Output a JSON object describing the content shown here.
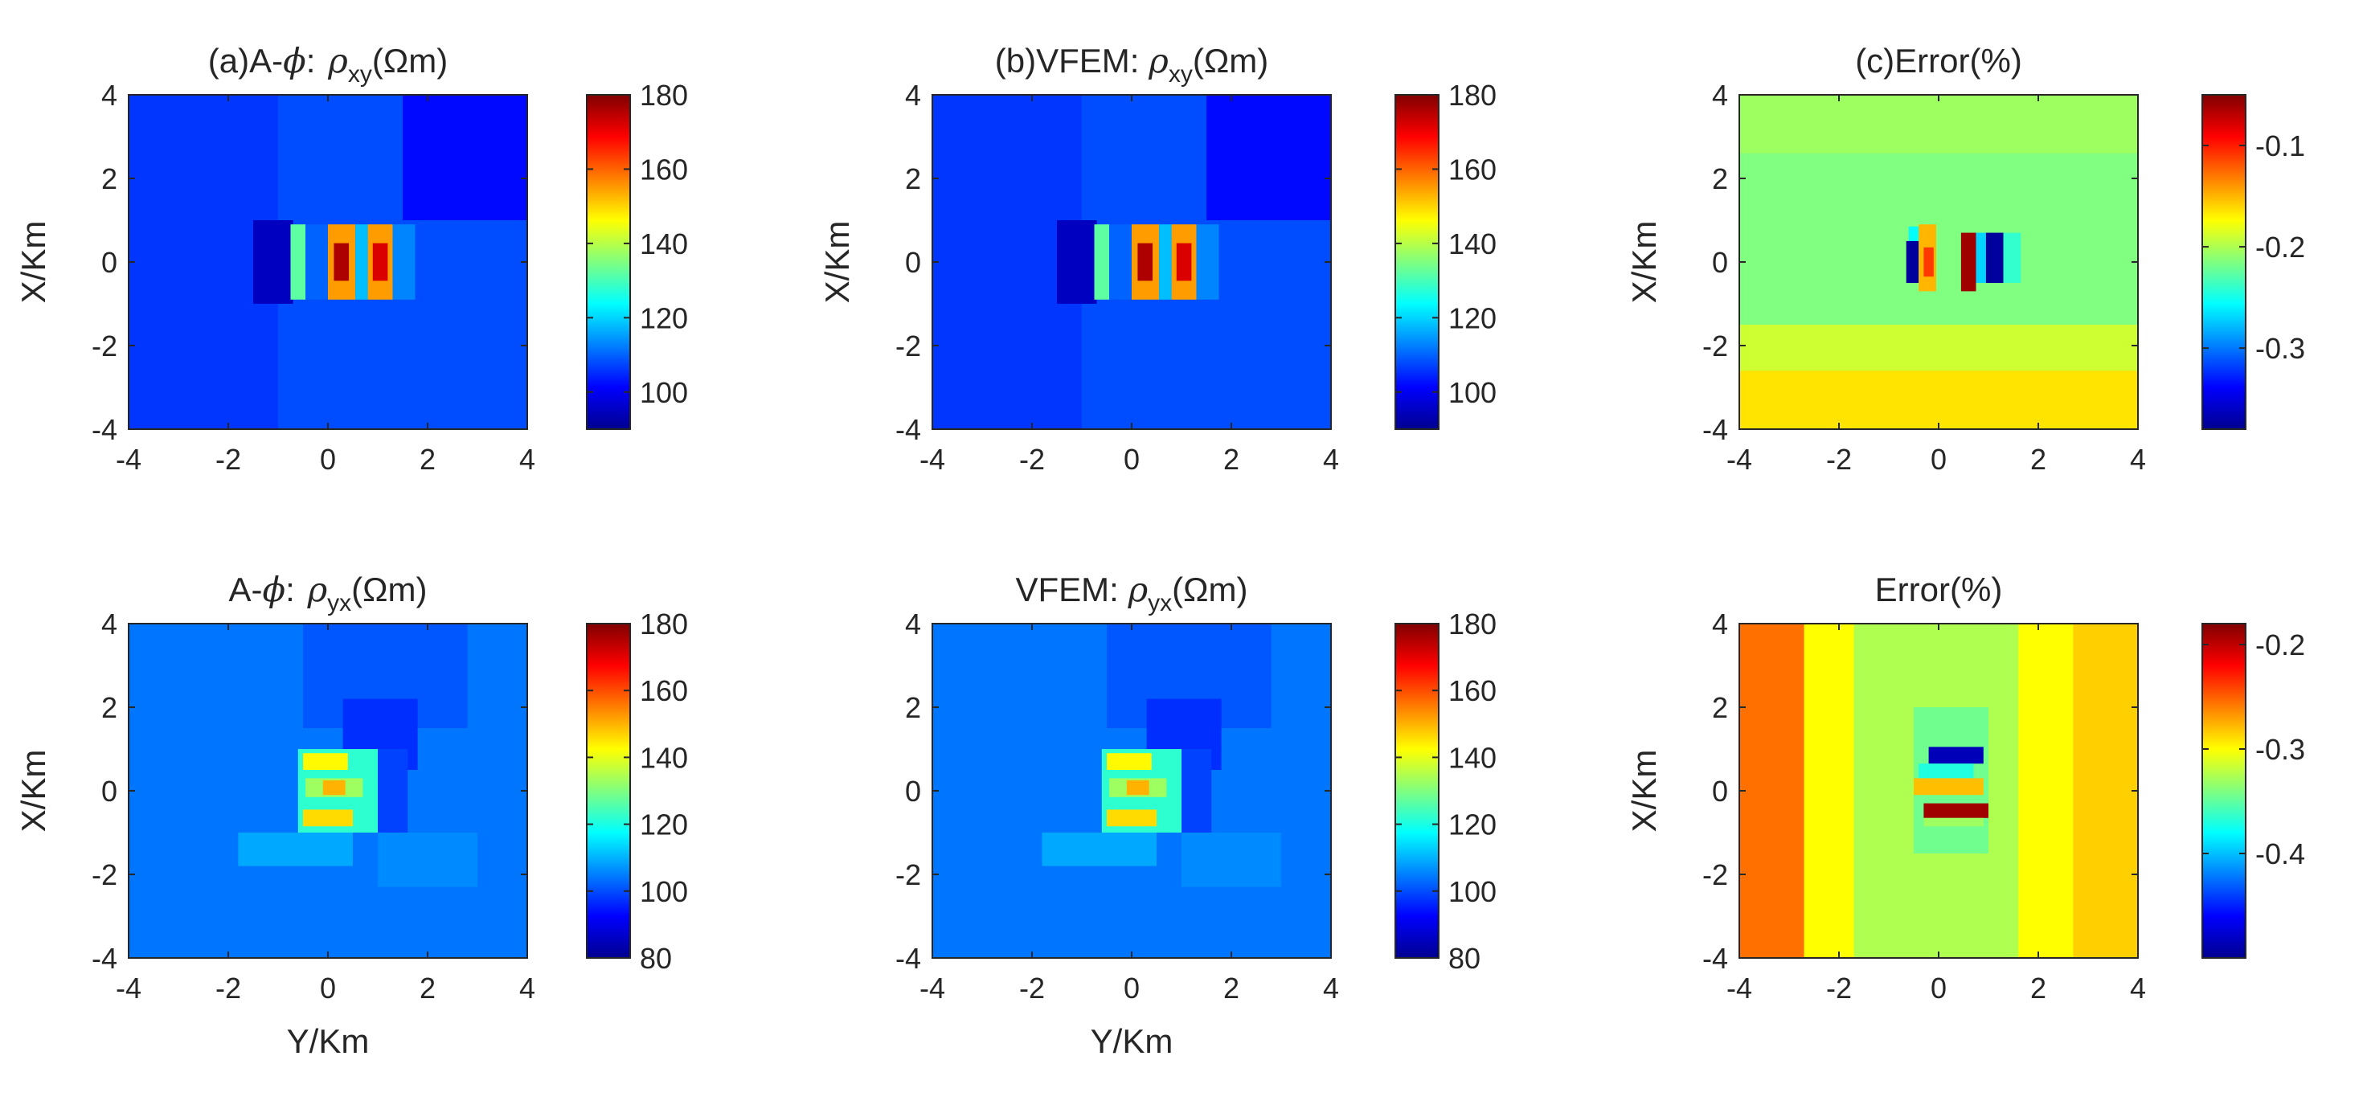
{
  "figure": {
    "colormap": "jet",
    "colormap_stops": [
      "#00008f",
      "#0000ff",
      "#00ffff",
      "#ffff00",
      "#ff0000",
      "#800000"
    ]
  },
  "chart_data": [
    {
      "type": "heatmap",
      "id": "a",
      "title": {
        "main": "(a)A-",
        "greek": "ϕ",
        "sep": ": ",
        "rho": "ρ",
        "sub": "xy",
        "unit": "(Ωm)"
      },
      "xlabel": "",
      "ylabel": "X/Km",
      "xlim": [
        -4,
        4
      ],
      "ylim": [
        -4,
        4
      ],
      "xticks": [
        "-4",
        "-2",
        "0",
        "2",
        "4"
      ],
      "yticks": [
        "4",
        "2",
        "0",
        "-2",
        "-4"
      ],
      "colorbar": {
        "min": 90,
        "max": 180,
        "ticks": [
          100,
          120,
          140,
          160,
          180
        ]
      },
      "background": 108,
      "features": [
        {
          "y": [
            -4.0,
            4.0
          ],
          "x": [
            -4.0,
            -1.0
          ],
          "value": 106
        },
        {
          "y": [
            1.0,
            4.0
          ],
          "x": [
            1.5,
            4.0
          ],
          "value": 102
        },
        {
          "y": [
            -1.0,
            1.0
          ],
          "x": [
            -1.5,
            -0.7
          ],
          "value": 95
        },
        {
          "y": [
            -0.9,
            0.9
          ],
          "x": [
            -0.75,
            -0.45
          ],
          "value": 132
        },
        {
          "y": [
            -0.9,
            0.9
          ],
          "x": [
            -0.45,
            0.0
          ],
          "value": 110
        },
        {
          "y": [
            -0.9,
            0.9
          ],
          "x": [
            0.0,
            0.55
          ],
          "value": 155
        },
        {
          "y": [
            -0.45,
            0.45
          ],
          "x": [
            0.12,
            0.42
          ],
          "value": 176
        },
        {
          "y": [
            -0.9,
            0.9
          ],
          "x": [
            0.55,
            0.8
          ],
          "value": 118
        },
        {
          "y": [
            -0.9,
            0.9
          ],
          "x": [
            0.8,
            1.3
          ],
          "value": 155
        },
        {
          "y": [
            -0.45,
            0.45
          ],
          "x": [
            0.9,
            1.2
          ],
          "value": 172
        },
        {
          "y": [
            -0.9,
            0.9
          ],
          "x": [
            1.3,
            1.75
          ],
          "value": 113
        }
      ]
    },
    {
      "type": "heatmap",
      "id": "b",
      "title": {
        "main": "(b)VFEM: ",
        "greek": "",
        "sep": "",
        "rho": "ρ",
        "sub": "xy",
        "unit": "(Ωm)"
      },
      "xlabel": "",
      "ylabel": "X/Km",
      "xlim": [
        -4,
        4
      ],
      "ylim": [
        -4,
        4
      ],
      "xticks": [
        "-4",
        "-2",
        "0",
        "2",
        "4"
      ],
      "yticks": [
        "4",
        "2",
        "0",
        "-2",
        "-4"
      ],
      "colorbar": {
        "min": 90,
        "max": 180,
        "ticks": [
          100,
          120,
          140,
          160,
          180
        ]
      },
      "background": 108,
      "features": [
        {
          "y": [
            -4.0,
            4.0
          ],
          "x": [
            -4.0,
            -1.0
          ],
          "value": 106
        },
        {
          "y": [
            1.0,
            4.0
          ],
          "x": [
            1.5,
            4.0
          ],
          "value": 102
        },
        {
          "y": [
            -1.0,
            1.0
          ],
          "x": [
            -1.5,
            -0.7
          ],
          "value": 95
        },
        {
          "y": [
            -0.9,
            0.9
          ],
          "x": [
            -0.75,
            -0.45
          ],
          "value": 132
        },
        {
          "y": [
            -0.9,
            0.9
          ],
          "x": [
            -0.45,
            0.0
          ],
          "value": 110
        },
        {
          "y": [
            -0.9,
            0.9
          ],
          "x": [
            0.0,
            0.55
          ],
          "value": 155
        },
        {
          "y": [
            -0.45,
            0.45
          ],
          "x": [
            0.12,
            0.42
          ],
          "value": 176
        },
        {
          "y": [
            -0.9,
            0.9
          ],
          "x": [
            0.55,
            0.8
          ],
          "value": 118
        },
        {
          "y": [
            -0.9,
            0.9
          ],
          "x": [
            0.8,
            1.3
          ],
          "value": 155
        },
        {
          "y": [
            -0.45,
            0.45
          ],
          "x": [
            0.9,
            1.2
          ],
          "value": 172
        },
        {
          "y": [
            -0.9,
            0.9
          ],
          "x": [
            1.3,
            1.75
          ],
          "value": 113
        }
      ]
    },
    {
      "type": "heatmap",
      "id": "c",
      "title": {
        "main": "(c)Error(%)",
        "greek": "",
        "sep": "",
        "rho": "",
        "sub": "",
        "unit": ""
      },
      "xlabel": "",
      "ylabel": "X/Km",
      "xlim": [
        -4,
        4
      ],
      "ylim": [
        -4,
        4
      ],
      "xticks": [
        "-4",
        "-2",
        "0",
        "2",
        "4"
      ],
      "yticks": [
        "4",
        "2",
        "0",
        "-2",
        "-4"
      ],
      "colorbar": {
        "min": -0.38,
        "max": -0.05,
        "ticks": [
          -0.3,
          -0.2,
          -0.1
        ]
      },
      "background": -0.215,
      "features": [
        {
          "y": [
            2.6,
            4.0
          ],
          "x": [
            -4.0,
            4.0
          ],
          "value": -0.205
        },
        {
          "y": [
            -2.6,
            -1.5
          ],
          "x": [
            -4.0,
            4.0
          ],
          "value": -0.19
        },
        {
          "y": [
            -4.0,
            -2.6
          ],
          "x": [
            -4.0,
            4.0
          ],
          "value": -0.165
        },
        {
          "y": [
            -0.45,
            0.85
          ],
          "x": [
            -0.6,
            -0.35
          ],
          "value": -0.255
        },
        {
          "y": [
            -0.5,
            0.5
          ],
          "x": [
            -0.65,
            -0.4
          ],
          "value": -0.375
        },
        {
          "y": [
            -0.7,
            0.9
          ],
          "x": [
            -0.4,
            -0.05
          ],
          "value": -0.15
        },
        {
          "y": [
            -0.35,
            0.35
          ],
          "x": [
            -0.3,
            -0.1
          ],
          "value": -0.11
        },
        {
          "y": [
            -0.7,
            0.7
          ],
          "x": [
            0.45,
            0.75
          ],
          "value": -0.06
        },
        {
          "y": [
            -0.5,
            0.7
          ],
          "x": [
            0.75,
            0.95
          ],
          "value": -0.27
        },
        {
          "y": [
            -0.5,
            0.7
          ],
          "x": [
            0.95,
            1.3
          ],
          "value": -0.375
        },
        {
          "y": [
            -0.5,
            0.7
          ],
          "x": [
            1.3,
            1.65
          ],
          "value": -0.24
        }
      ]
    },
    {
      "type": "heatmap",
      "id": "d",
      "title": {
        "main": "A-",
        "greek": "ϕ",
        "sep": ": ",
        "rho": "ρ",
        "sub": "yx",
        "unit": "(Ωm)"
      },
      "xlabel": "Y/Km",
      "ylabel": "X/Km",
      "xlim": [
        -4,
        4
      ],
      "ylim": [
        -4,
        4
      ],
      "xticks": [
        "-4",
        "-2",
        "0",
        "2",
        "4"
      ],
      "yticks": [
        "4",
        "2",
        "0",
        "-2",
        "-4"
      ],
      "colorbar": {
        "min": 80,
        "max": 180,
        "ticks": [
          80,
          100,
          120,
          140,
          160,
          180
        ]
      },
      "background": 104,
      "features": [
        {
          "y": [
            1.5,
            4.0
          ],
          "x": [
            -0.5,
            2.8
          ],
          "value": 101
        },
        {
          "y": [
            0.5,
            2.2
          ],
          "x": [
            0.3,
            1.8
          ],
          "value": 97
        },
        {
          "y": [
            -2.3,
            -1.0
          ],
          "x": [
            1.0,
            3.0
          ],
          "value": 106
        },
        {
          "y": [
            -1.8,
            -1.0
          ],
          "x": [
            -1.8,
            0.5
          ],
          "value": 109
        },
        {
          "y": [
            -1.0,
            1.0
          ],
          "x": [
            -0.6,
            1.0
          ],
          "value": 122
        },
        {
          "y": [
            0.5,
            0.9
          ],
          "x": [
            -0.5,
            0.4
          ],
          "value": 143
        },
        {
          "y": [
            -0.15,
            0.3
          ],
          "x": [
            -0.45,
            0.7
          ],
          "value": 133
        },
        {
          "y": [
            -0.1,
            0.25
          ],
          "x": [
            -0.1,
            0.35
          ],
          "value": 150
        },
        {
          "y": [
            -0.85,
            -0.45
          ],
          "x": [
            -0.5,
            0.5
          ],
          "value": 146
        },
        {
          "y": [
            -1.0,
            1.0
          ],
          "x": [
            1.0,
            1.6
          ],
          "value": 99
        }
      ]
    },
    {
      "type": "heatmap",
      "id": "e",
      "title": {
        "main": "VFEM: ",
        "greek": "",
        "sep": "",
        "rho": "ρ",
        "sub": "yx",
        "unit": "(Ωm)"
      },
      "xlabel": "Y/Km",
      "ylabel": "",
      "xlim": [
        -4,
        4
      ],
      "ylim": [
        -4,
        4
      ],
      "xticks": [
        "-4",
        "-2",
        "0",
        "2",
        "4"
      ],
      "yticks": [
        "4",
        "2",
        "0",
        "-2",
        "-4"
      ],
      "colorbar": {
        "min": 80,
        "max": 180,
        "ticks": [
          80,
          100,
          120,
          140,
          160,
          180
        ]
      },
      "background": 104,
      "features": [
        {
          "y": [
            1.5,
            4.0
          ],
          "x": [
            -0.5,
            2.8
          ],
          "value": 101
        },
        {
          "y": [
            0.5,
            2.2
          ],
          "x": [
            0.3,
            1.8
          ],
          "value": 97
        },
        {
          "y": [
            -2.3,
            -1.0
          ],
          "x": [
            1.0,
            3.0
          ],
          "value": 106
        },
        {
          "y": [
            -1.8,
            -1.0
          ],
          "x": [
            -1.8,
            0.5
          ],
          "value": 109
        },
        {
          "y": [
            -1.0,
            1.0
          ],
          "x": [
            -0.6,
            1.0
          ],
          "value": 122
        },
        {
          "y": [
            0.5,
            0.9
          ],
          "x": [
            -0.5,
            0.4
          ],
          "value": 143
        },
        {
          "y": [
            -0.15,
            0.3
          ],
          "x": [
            -0.45,
            0.7
          ],
          "value": 133
        },
        {
          "y": [
            -0.1,
            0.25
          ],
          "x": [
            -0.1,
            0.35
          ],
          "value": 150
        },
        {
          "y": [
            -0.85,
            -0.45
          ],
          "x": [
            -0.5,
            0.5
          ],
          "value": 146
        },
        {
          "y": [
            -1.0,
            1.0
          ],
          "x": [
            1.0,
            1.6
          ],
          "value": 99
        }
      ]
    },
    {
      "type": "heatmap",
      "id": "f",
      "title": {
        "main": "Error(%)",
        "greek": "",
        "sep": "",
        "rho": "",
        "sub": "",
        "unit": ""
      },
      "xlabel": "",
      "ylabel": "X/Km",
      "xlim": [
        -4,
        4
      ],
      "ylim": [
        -4,
        4
      ],
      "xticks": [
        "-4",
        "-2",
        "0",
        "2",
        "4"
      ],
      "yticks": [
        "4",
        "2",
        "0",
        "-2",
        "-4"
      ],
      "colorbar": {
        "min": -0.5,
        "max": -0.18,
        "ticks": [
          -0.4,
          -0.3,
          -0.2
        ]
      },
      "background": -0.3,
      "features": [
        {
          "y": [
            -4.0,
            4.0
          ],
          "x": [
            -4.0,
            -2.7
          ],
          "value": -0.255
        },
        {
          "y": [
            -4.0,
            4.0
          ],
          "x": [
            2.7,
            4.0
          ],
          "value": -0.285
        },
        {
          "y": [
            -4.0,
            4.0
          ],
          "x": [
            -1.7,
            1.6
          ],
          "value": -0.325
        },
        {
          "y": [
            -1.5,
            2.0
          ],
          "x": [
            -0.5,
            1.0
          ],
          "value": -0.345
        },
        {
          "y": [
            0.65,
            1.05
          ],
          "x": [
            -0.2,
            0.9
          ],
          "value": -0.485
        },
        {
          "y": [
            0.3,
            0.65
          ],
          "x": [
            -0.4,
            0.7
          ],
          "value": -0.37
        },
        {
          "y": [
            -0.1,
            0.3
          ],
          "x": [
            -0.5,
            0.9
          ],
          "value": -0.28
        },
        {
          "y": [
            -0.65,
            -0.3
          ],
          "x": [
            -0.3,
            1.0
          ],
          "value": -0.19
        },
        {
          "y": [
            -0.85,
            -0.65
          ],
          "x": [
            -0.3,
            0.9
          ],
          "value": -0.33
        }
      ]
    }
  ]
}
